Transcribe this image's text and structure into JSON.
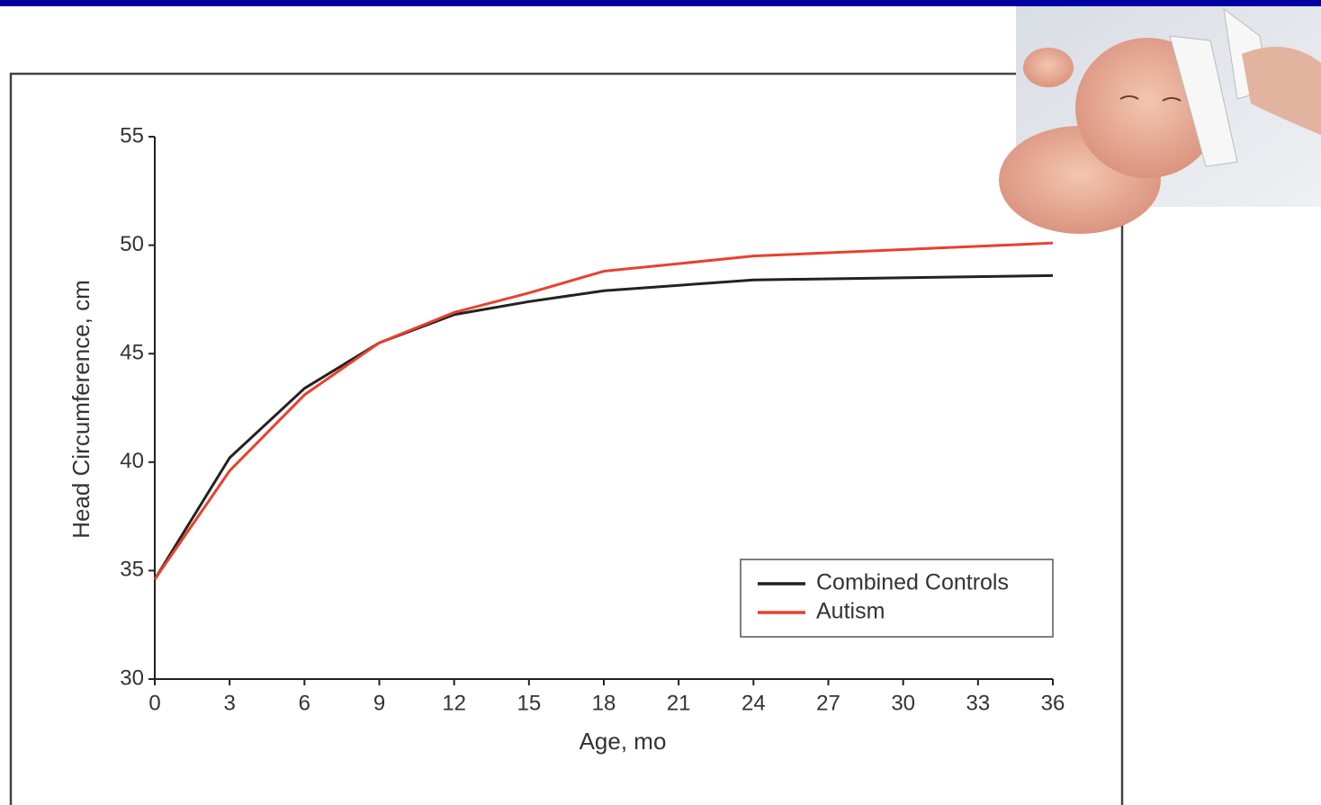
{
  "chart_data": {
    "type": "line",
    "x_label": "Age, mo",
    "y_label": "Head Circumference, cm",
    "x": [
      0,
      3,
      6,
      9,
      12,
      15,
      18,
      24,
      36
    ],
    "series": [
      {
        "name": "Combined Controls",
        "color": "#222222",
        "values": [
          34.6,
          40.2,
          43.4,
          45.5,
          46.8,
          47.4,
          47.9,
          48.4,
          48.6
        ]
      },
      {
        "name": "Autism",
        "color": "#e8412c",
        "values": [
          34.6,
          39.6,
          43.1,
          45.5,
          46.9,
          47.8,
          48.8,
          49.5,
          50.1
        ]
      }
    ],
    "xlim": [
      0,
      36
    ],
    "xticks": [
      0,
      3,
      6,
      9,
      12,
      15,
      18,
      21,
      24,
      27,
      30,
      33,
      36
    ],
    "ylim": [
      30,
      55
    ],
    "yticks": [
      30,
      35,
      40,
      45,
      50,
      55
    ],
    "grid": false,
    "legend": "lower right"
  }
}
